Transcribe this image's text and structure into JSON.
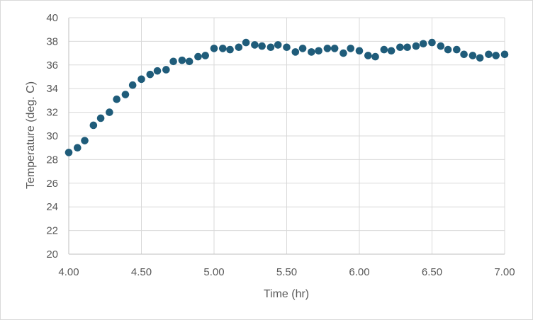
{
  "chart_data": {
    "type": "scatter",
    "title": "",
    "xlabel": "Time (hr)",
    "ylabel": "Temperature (deg. C)",
    "xlim": [
      4.0,
      7.0
    ],
    "ylim": [
      20,
      40
    ],
    "x_ticks": [
      4.0,
      4.5,
      5.0,
      5.5,
      6.0,
      6.5,
      7.0
    ],
    "x_tick_labels": [
      "4.00",
      "4.50",
      "5.00",
      "5.50",
      "6.00",
      "6.50",
      "7.00"
    ],
    "y_ticks": [
      20,
      22,
      24,
      26,
      28,
      30,
      32,
      34,
      36,
      38,
      40
    ],
    "y_tick_labels": [
      "20",
      "22",
      "24",
      "26",
      "28",
      "30",
      "32",
      "34",
      "36",
      "38",
      "40"
    ],
    "grid": true,
    "legend": "none",
    "marker_color": "#1f5c7a",
    "grid_color": "#d9d9d9",
    "axis_color": "#bfbfbf",
    "series": [
      {
        "x": [
          4.0,
          4.06,
          4.11,
          4.17,
          4.22,
          4.28,
          4.33,
          4.39,
          4.44,
          4.5,
          4.56,
          4.61,
          4.67,
          4.72,
          4.78,
          4.83,
          4.89,
          4.94,
          5.0,
          5.06,
          5.11,
          5.17,
          5.22,
          5.28,
          5.33,
          5.39,
          5.44,
          5.5,
          5.56,
          5.61,
          5.67,
          5.72,
          5.78,
          5.83,
          5.89,
          5.94,
          6.0,
          6.06,
          6.11,
          6.17,
          6.22,
          6.28,
          6.33,
          6.39,
          6.44,
          6.5,
          6.56,
          6.61,
          6.67,
          6.72,
          6.78,
          6.83,
          6.89,
          6.94,
          7.0
        ],
        "y": [
          28.6,
          29.0,
          29.6,
          30.9,
          31.5,
          32.0,
          33.1,
          33.5,
          34.3,
          34.8,
          35.2,
          35.5,
          35.6,
          36.3,
          36.4,
          36.3,
          36.7,
          36.8,
          37.4,
          37.4,
          37.3,
          37.5,
          37.9,
          37.7,
          37.6,
          37.5,
          37.7,
          37.5,
          37.1,
          37.4,
          37.1,
          37.2,
          37.4,
          37.4,
          37.0,
          37.4,
          37.2,
          36.8,
          36.7,
          37.3,
          37.2,
          37.5,
          37.5,
          37.6,
          37.8,
          37.9,
          37.6,
          37.3,
          37.3,
          36.9,
          36.8,
          36.6,
          36.9,
          36.8,
          36.9
        ]
      }
    ]
  }
}
